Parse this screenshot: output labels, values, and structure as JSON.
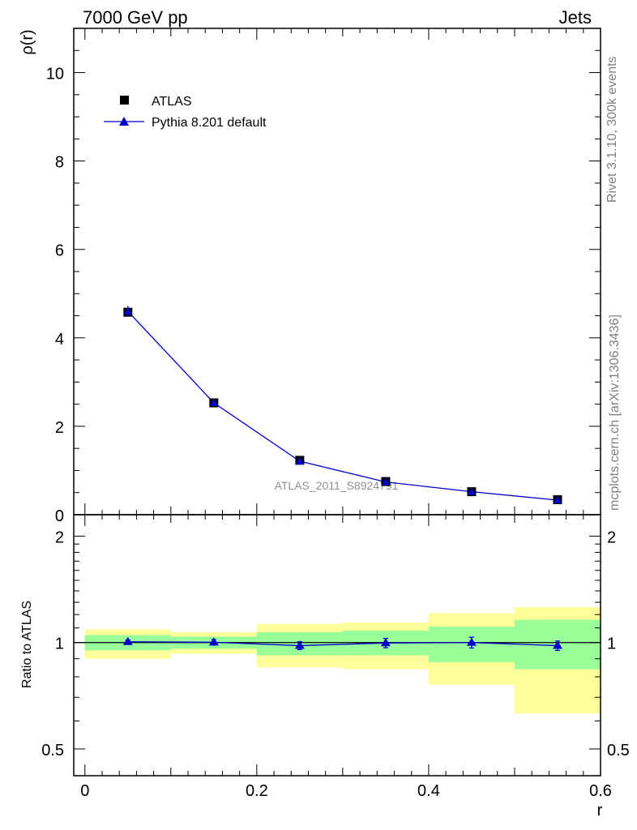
{
  "header": {
    "left": "7000 GeV pp",
    "right": "Jets"
  },
  "side_labels": {
    "rivet": "Rivet 3.1.10,  300k events",
    "mcplots": "mcplots.cern.ch [arXiv:1306.3436]"
  },
  "watermark": "ATLAS_2011_S8924791",
  "colors": {
    "data": "#000000",
    "mc": "#0000cc",
    "band_inner": "#99ff99",
    "band_outer": "#ffff99"
  },
  "chart_data": [
    {
      "type": "scatter",
      "ylabel": "ρ(r)",
      "xlim": [
        -0.013,
        0.6
      ],
      "ylim": [
        0,
        11
      ],
      "x_ticks": [
        0,
        0.2,
        0.4,
        0.6
      ],
      "y_ticks": [
        0,
        2,
        4,
        6,
        8,
        10
      ],
      "y_tick_labels": [
        "0",
        "2",
        "4",
        "6",
        "8",
        "10"
      ],
      "legend": {
        "position": "top-left"
      },
      "series": [
        {
          "name": "ATLAS",
          "x": [
            0.05,
            0.15,
            0.25,
            0.35,
            0.45,
            0.55
          ],
          "y": [
            4.58,
            2.53,
            1.23,
            0.75,
            0.52,
            0.34
          ],
          "marker": "square"
        },
        {
          "name": "Pythia 8.201 default",
          "x": [
            0.05,
            0.15,
            0.25,
            0.35,
            0.45,
            0.55
          ],
          "y": [
            4.6,
            2.53,
            1.21,
            0.74,
            0.52,
            0.33
          ],
          "yerr": [
            0.12,
            0.04,
            0.03,
            0.02,
            0.02,
            0.02
          ],
          "marker": "triangle",
          "line": true
        }
      ]
    },
    {
      "type": "line",
      "ylabel": "Ratio to ATLAS",
      "xlabel": "r",
      "scale": "log",
      "xlim": [
        -0.013,
        0.6
      ],
      "ylim": [
        0.42,
        2.3
      ],
      "x_ticks": [
        0,
        0.2,
        0.4,
        0.6
      ],
      "x_tick_labels": [
        "0",
        "0.2",
        "0.4",
        "0.6"
      ],
      "y_ticks": [
        0.5,
        1,
        2
      ],
      "y_tick_labels": [
        "0.5",
        "1",
        "2"
      ],
      "bins": [
        [
          0,
          0.1
        ],
        [
          0.1,
          0.2
        ],
        [
          0.2,
          0.3
        ],
        [
          0.3,
          0.4
        ],
        [
          0.4,
          0.5
        ],
        [
          0.5,
          0.6
        ]
      ],
      "band_inner": [
        [
          0.95,
          1.05
        ],
        [
          0.96,
          1.04
        ],
        [
          0.92,
          1.07
        ],
        [
          0.92,
          1.08
        ],
        [
          0.88,
          1.11
        ],
        [
          0.84,
          1.16
        ]
      ],
      "band_outer": [
        [
          0.9,
          1.09
        ],
        [
          0.93,
          1.07
        ],
        [
          0.85,
          1.13
        ],
        [
          0.84,
          1.14
        ],
        [
          0.76,
          1.21
        ],
        [
          0.63,
          1.26
        ]
      ],
      "series": [
        {
          "name": "Pythia 8.201 default",
          "x": [
            0.05,
            0.15,
            0.25,
            0.35,
            0.45,
            0.55
          ],
          "y": [
            1.005,
            1.002,
            0.98,
            0.997,
            1.0,
            0.98
          ],
          "yerr": [
            0.012,
            0.018,
            0.025,
            0.03,
            0.035,
            0.03
          ]
        }
      ]
    }
  ]
}
